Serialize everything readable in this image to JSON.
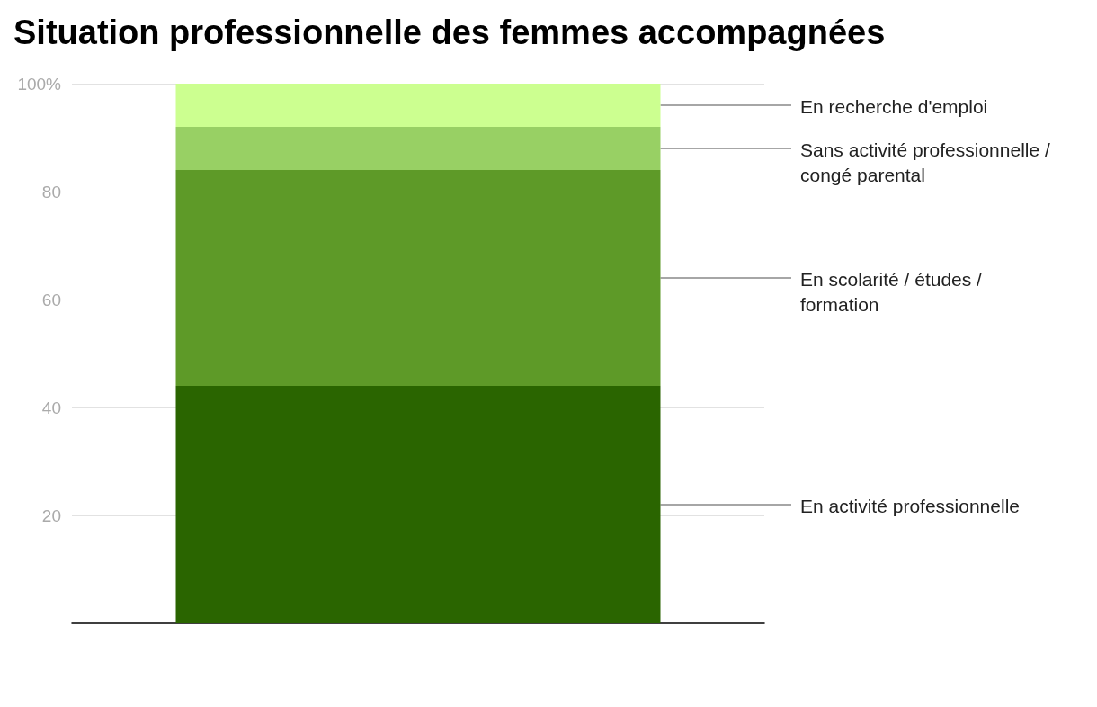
{
  "chart_data": {
    "type": "bar",
    "title": "Situation professionnelle des femmes accompagnées",
    "stacked": true,
    "categories": [
      null
    ],
    "series": [
      {
        "name": "En activité professionnelle",
        "color": "#2a6500",
        "values": [
          44
        ]
      },
      {
        "name": "En scolarité / études / formation",
        "color": "#5e9a28",
        "values": [
          40
        ]
      },
      {
        "name": "Sans activité professionnelle / congé parental",
        "color": "#98d064",
        "values": [
          8
        ]
      },
      {
        "name": "En recherche d'emploi",
        "color": "#ccff90",
        "values": [
          8
        ]
      }
    ],
    "ylim": [
      0,
      100
    ],
    "yticks": [
      20,
      40,
      60,
      80,
      {
        "value": 100,
        "label": "100%"
      }
    ],
    "grid": "y",
    "legend": false
  }
}
